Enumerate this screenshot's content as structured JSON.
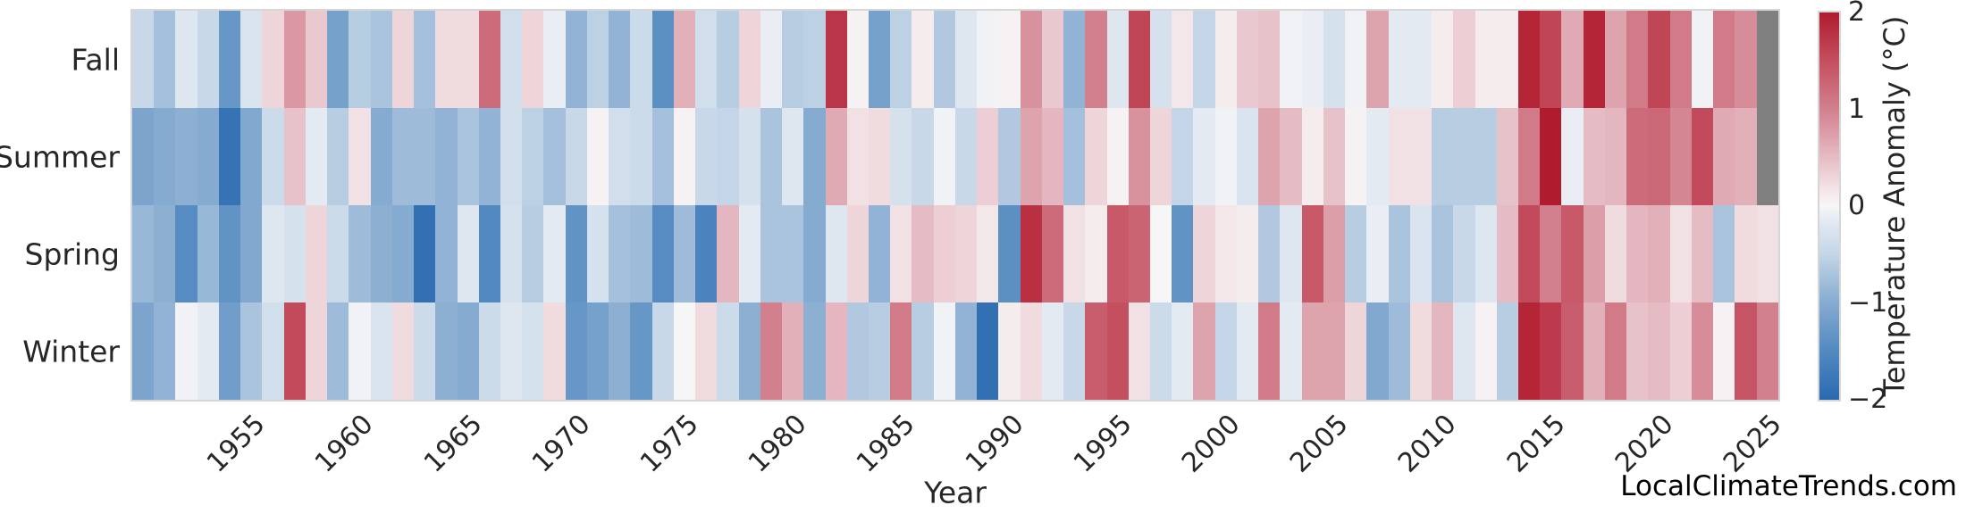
{
  "watermark": "LocalClimateTrends.com",
  "chart_data": {
    "type": "heatmap",
    "title": "",
    "xlabel": "Year",
    "ylabel": "",
    "colorbar_label": "Temperature Anomaly (°C)",
    "legend_position": "right-colorbar",
    "grid": false,
    "year_start": 1950,
    "year_end": 2025,
    "x_tick_labels": [
      "1955",
      "1960",
      "1965",
      "1970",
      "1975",
      "1980",
      "1985",
      "1990",
      "1995",
      "2000",
      "2005",
      "2010",
      "2015",
      "2020",
      "2025"
    ],
    "x_tick_years": [
      1955,
      1960,
      1965,
      1970,
      1975,
      1980,
      1985,
      1990,
      1995,
      2000,
      2005,
      2010,
      2015,
      2020,
      2025
    ],
    "colorbar_ticks": [
      {
        "label": "2",
        "value": 2
      },
      {
        "label": "1",
        "value": 1
      },
      {
        "label": "0",
        "value": 0
      },
      {
        "label": "−1",
        "value": -1
      },
      {
        "label": "−2",
        "value": -2
      }
    ],
    "vmin": -2,
    "vmax": 2,
    "missing_color": "#808080",
    "colormap_anchors": [
      [
        -2.0,
        "#2a6ab0"
      ],
      [
        -1.5,
        "#5289c0"
      ],
      [
        -1.0,
        "#86abd0"
      ],
      [
        -0.5,
        "#c3d5e7"
      ],
      [
        -0.15,
        "#e3eaf2"
      ],
      [
        0.0,
        "#f7f6f7"
      ],
      [
        0.15,
        "#f4e7e9"
      ],
      [
        0.5,
        "#e6bcc4"
      ],
      [
        1.0,
        "#d2808e"
      ],
      [
        1.5,
        "#c44f5f"
      ],
      [
        2.0,
        "#b01b2e"
      ]
    ],
    "categories_y": [
      "Fall",
      "Summer",
      "Spring",
      "Winter"
    ],
    "series": [
      {
        "name": "Fall",
        "values": [
          -0.45,
          -0.75,
          -0.2,
          -0.45,
          -1.3,
          -0.25,
          0.3,
          0.8,
          0.4,
          -1.15,
          -0.6,
          -0.7,
          0.3,
          -0.75,
          0.25,
          0.25,
          1.2,
          -0.35,
          0.3,
          -0.1,
          -0.9,
          -0.55,
          -0.9,
          -0.4,
          -1.4,
          0.6,
          -0.35,
          -0.6,
          0.3,
          -0.1,
          -0.6,
          -0.55,
          1.75,
          0.05,
          -1.15,
          -0.55,
          0.1,
          -0.65,
          -0.2,
          -0.05,
          0.05,
          0.85,
          0.4,
          -0.9,
          1.0,
          -0.2,
          1.6,
          -0.3,
          0.15,
          -0.5,
          0.1,
          0.4,
          0.45,
          -0.05,
          -0.1,
          -0.3,
          -0.05,
          0.7,
          -0.15,
          -0.15,
          0.1,
          0.35,
          0.1,
          0.1,
          1.9,
          1.6,
          0.65,
          1.9,
          0.7,
          1.05,
          1.6,
          1.05,
          -0.05,
          1.05,
          0.9,
          null
        ]
      },
      {
        "name": "Summer",
        "values": [
          -1.1,
          -1.0,
          -0.95,
          -1.0,
          -1.85,
          -1.05,
          -0.4,
          0.45,
          -0.15,
          -0.6,
          0.2,
          -1.0,
          -0.8,
          -0.8,
          -0.9,
          -0.7,
          -0.9,
          -0.35,
          -0.55,
          -0.75,
          -0.45,
          0.05,
          -0.35,
          -0.4,
          -0.75,
          0.05,
          -0.45,
          -0.5,
          -0.3,
          -0.7,
          -0.2,
          -1.0,
          0.65,
          0.2,
          0.25,
          -0.3,
          -0.45,
          -0.05,
          -0.45,
          0.35,
          -0.65,
          0.7,
          0.55,
          -0.75,
          0.3,
          0.05,
          0.85,
          0.3,
          -0.5,
          -0.15,
          -0.05,
          -0.25,
          0.7,
          0.5,
          0.1,
          0.45,
          0.05,
          -0.15,
          0.2,
          0.2,
          -0.6,
          -0.6,
          -0.6,
          0.45,
          1.05,
          2.0,
          -0.1,
          0.5,
          0.55,
          1.2,
          1.25,
          0.95,
          1.55,
          0.65,
          0.6,
          null
        ]
      },
      {
        "name": "Spring",
        "values": [
          -0.85,
          -0.95,
          -1.45,
          -0.85,
          -1.35,
          -1.05,
          -0.2,
          -0.3,
          0.3,
          -0.4,
          -0.8,
          -0.95,
          -1.0,
          -1.9,
          -0.9,
          -0.2,
          -1.5,
          -0.3,
          -0.6,
          -0.15,
          -1.35,
          -0.3,
          -0.75,
          -0.8,
          -1.45,
          -0.8,
          -1.6,
          0.55,
          -0.15,
          -0.7,
          -0.7,
          -1.0,
          -0.2,
          0.3,
          -0.9,
          0.2,
          0.5,
          0.35,
          0.3,
          0.15,
          -1.4,
          1.8,
          1.2,
          0.2,
          0.1,
          1.4,
          1.3,
          0.0,
          -1.35,
          0.3,
          0.15,
          0.1,
          -0.65,
          -0.2,
          1.4,
          0.75,
          -0.6,
          -0.1,
          -0.7,
          -0.25,
          -0.7,
          -0.45,
          -0.2,
          0.5,
          1.55,
          1.0,
          1.4,
          0.75,
          0.25,
          0.55,
          0.6,
          0.2,
          0.5,
          -0.7,
          0.25,
          0.2
        ]
      },
      {
        "name": "Winter",
        "values": [
          -1.1,
          -0.9,
          -0.05,
          -0.15,
          -1.2,
          -0.7,
          -0.35,
          1.55,
          0.3,
          -0.8,
          -0.05,
          -0.25,
          0.25,
          -0.4,
          -0.95,
          -1.0,
          -0.4,
          -0.2,
          -0.3,
          0.25,
          -1.3,
          -1.15,
          -0.95,
          -1.3,
          -0.45,
          0.0,
          0.25,
          -0.4,
          -0.95,
          1.0,
          0.6,
          -0.95,
          0.55,
          -0.65,
          -0.6,
          1.05,
          -0.6,
          -0.05,
          -0.9,
          -1.9,
          0.1,
          0.25,
          -0.15,
          -0.45,
          1.35,
          1.5,
          0.2,
          -0.4,
          -0.15,
          0.7,
          -0.5,
          -0.15,
          1.05,
          -0.15,
          0.7,
          0.7,
          0.3,
          -1.05,
          -0.8,
          0.25,
          0.55,
          -0.2,
          0.05,
          -0.6,
          1.9,
          1.7,
          1.35,
          0.6,
          1.05,
          0.45,
          0.5,
          0.35,
          0.9,
          0.05,
          1.45,
          1.0
        ]
      }
    ]
  }
}
